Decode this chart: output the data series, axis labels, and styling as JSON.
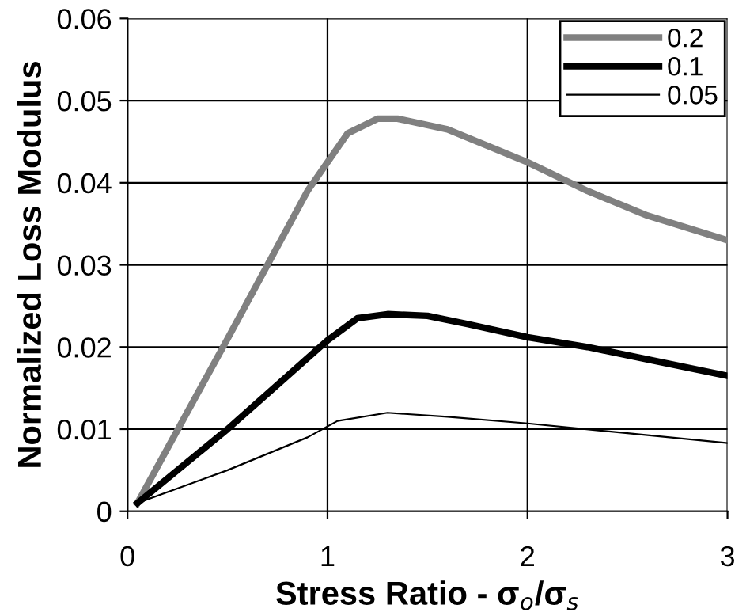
{
  "chart_data": {
    "type": "line",
    "xlabel": "Stress Ratio - σ$_{o}$/σ$_{s}$",
    "ylabel": "Normalized Loss Modulus",
    "xlim": [
      0,
      3
    ],
    "xticks": [
      0,
      1,
      2,
      3
    ],
    "ylim": [
      0,
      0.06
    ],
    "yticks": [
      0,
      0.01,
      0.02,
      0.03,
      0.04,
      0.05,
      0.06
    ],
    "grid": true,
    "legend": "top right",
    "marker": "none",
    "line_style": "solid",
    "series": [
      {
        "name": "0.2",
        "color": "#808080",
        "x": [
          0.05,
          0.5,
          0.9,
          1.0,
          1.1,
          1.25,
          1.35,
          1.6,
          2.0,
          2.3,
          2.6,
          3.0
        ],
        "values": [
          0.001,
          0.021,
          0.039,
          0.0425,
          0.046,
          0.0478,
          0.0478,
          0.0465,
          0.0425,
          0.039,
          0.036,
          0.033
        ]
      },
      {
        "name": "0.1",
        "color": "#000000",
        "x": [
          0.05,
          0.5,
          1.0,
          1.15,
          1.3,
          1.5,
          1.7,
          2.0,
          2.3,
          2.6,
          3.0
        ],
        "values": [
          0.001,
          0.01,
          0.0208,
          0.0235,
          0.024,
          0.0238,
          0.0228,
          0.0212,
          0.02,
          0.0185,
          0.0165
        ]
      },
      {
        "name": "0.05",
        "color": "#000000",
        "x": [
          0.05,
          0.5,
          0.9,
          1.05,
          1.3,
          1.6,
          2.0,
          2.5,
          3.0
        ],
        "values": [
          0.001,
          0.005,
          0.009,
          0.011,
          0.012,
          0.0115,
          0.0107,
          0.0095,
          0.0083
        ]
      }
    ]
  }
}
